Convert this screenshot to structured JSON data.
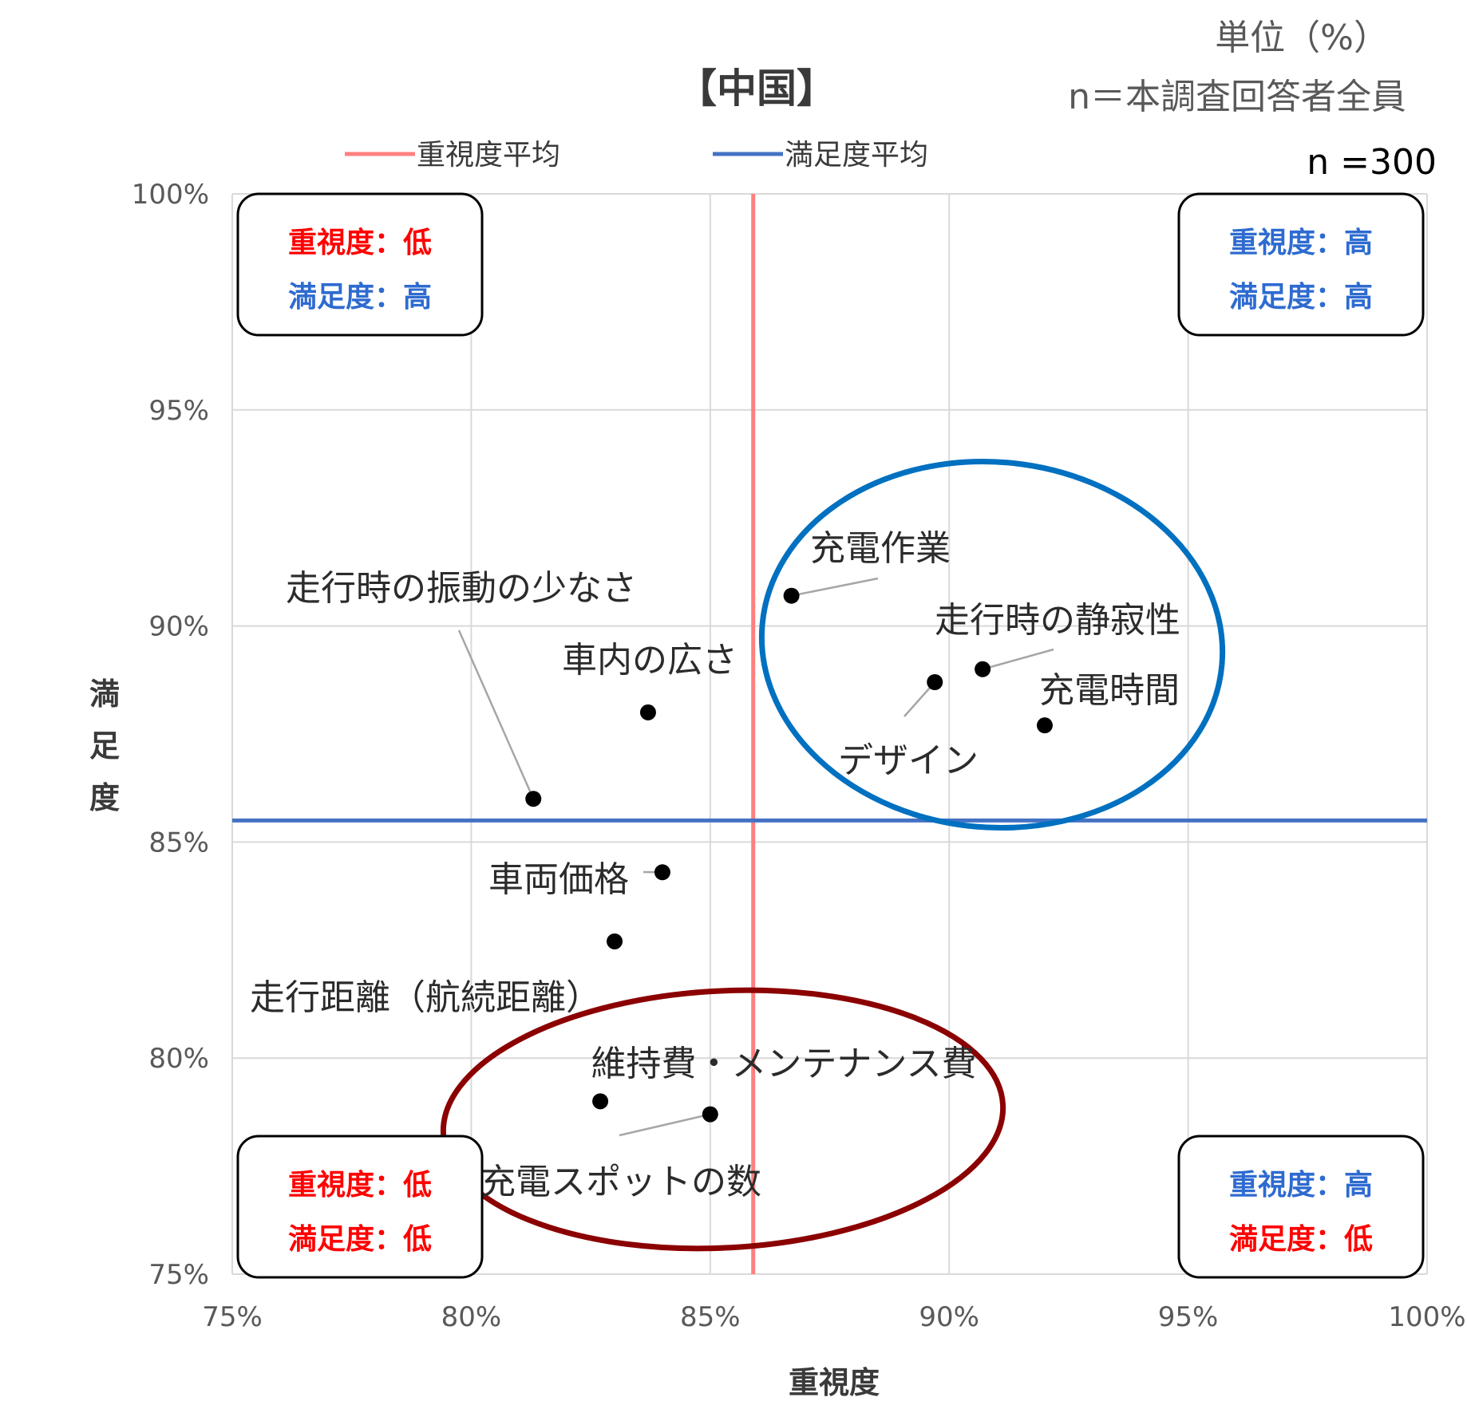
{
  "header": {
    "unit": "単位（%）",
    "respondents": "n＝本調査回答者全員",
    "n": "n =300"
  },
  "colors": {
    "importance_avg": "#ff7f7f",
    "satisfaction_avg": "#4472c4",
    "high_cluster": "#0070c0",
    "low_cluster": "#8b0000",
    "high_text": "#2e6bd0",
    "low_text": "#ff0000",
    "grid": "#d9d9d9"
  },
  "chart_data": {
    "type": "scatter",
    "title": "【中国】",
    "xlabel": "重視度",
    "ylabel": "満足度",
    "xlim": [
      75,
      100
    ],
    "ylim": [
      75,
      100
    ],
    "xticks": [
      "75%",
      "80%",
      "85%",
      "90%",
      "95%",
      "100%"
    ],
    "yticks": [
      "75%",
      "80%",
      "85%",
      "90%",
      "95%",
      "100%"
    ],
    "grid": true,
    "legend": "top",
    "reference_lines": [
      {
        "name": "重視度平均",
        "orientation": "vertical",
        "value": 85.9,
        "color": "#ff7f7f"
      },
      {
        "name": "満足度平均",
        "orientation": "horizontal",
        "value": 85.5,
        "color": "#4472c4"
      }
    ],
    "points": [
      {
        "label": "走行時の振動の少なさ",
        "x": 81.3,
        "y": 86.0
      },
      {
        "label": "車内の広さ",
        "x": 83.7,
        "y": 88.0
      },
      {
        "label": "充電作業",
        "x": 86.7,
        "y": 90.7
      },
      {
        "label": "走行時の静寂性",
        "x": 90.7,
        "y": 89.0
      },
      {
        "label": "デザイン",
        "x": 89.7,
        "y": 88.7
      },
      {
        "label": "充電時間",
        "x": 92.0,
        "y": 87.7
      },
      {
        "label": "車両価格",
        "x": 84.0,
        "y": 84.3
      },
      {
        "label": "走行距離（航続距離）",
        "x": 83.0,
        "y": 82.7
      },
      {
        "label": "維持費・メンテナンス費",
        "x": 82.7,
        "y": 79.0
      },
      {
        "label": "充電スポットの数",
        "x": 85.0,
        "y": 78.7
      }
    ],
    "quadrant_labels": [
      {
        "position": "top-left",
        "importance": "重視度：低",
        "satisfaction": "満足度：高"
      },
      {
        "position": "top-right",
        "importance": "重視度：高",
        "satisfaction": "満足度：高"
      },
      {
        "position": "bottom-left",
        "importance": "重視度：低",
        "satisfaction": "満足度：低"
      },
      {
        "position": "bottom-right",
        "importance": "重視度：高",
        "satisfaction": "満足度：低"
      }
    ]
  }
}
